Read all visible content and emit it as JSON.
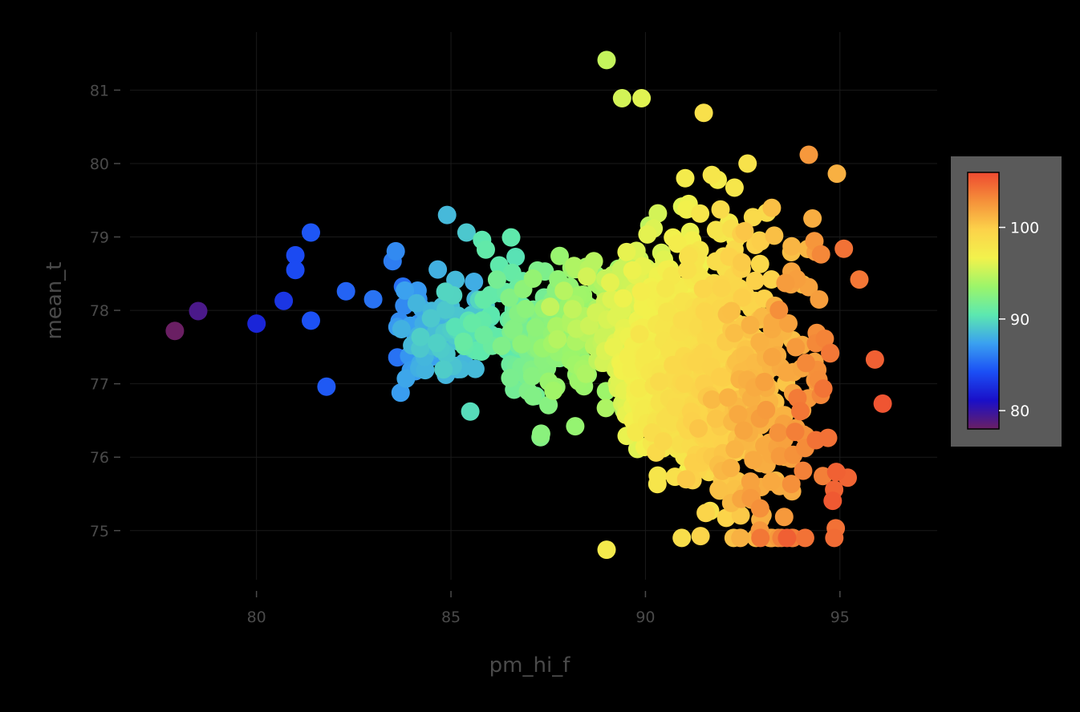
{
  "chart_data": {
    "type": "scatter",
    "title": "",
    "xlabel": "pm_hi_f",
    "ylabel": "mean_t",
    "xlim": [
      76.5,
      97.5
    ],
    "ylim": [
      74.2,
      81.9
    ],
    "x_ticks": [
      80,
      85,
      90,
      95
    ],
    "y_ticks": [
      75,
      76,
      77,
      78,
      79,
      80,
      81
    ],
    "grid": true,
    "background": "#000000",
    "point_count": 1500,
    "colorbar": {
      "label": "",
      "range": [
        78,
        106
      ],
      "ticks": [
        80,
        90,
        100
      ],
      "colorscale": [
        "#6a1f63",
        "#1a0fc8",
        "#1b4ff5",
        "#3aa0f0",
        "#5ce8b0",
        "#9cf56a",
        "#f2f24c",
        "#fcd24a",
        "#f5903a",
        "#ee4a30"
      ],
      "box_color": "#5a5a5a"
    },
    "color_variable_note": "",
    "highlighted_points": [
      {
        "x": 77.9,
        "y": 77.72,
        "c": 78.0
      },
      {
        "x": 78.5,
        "y": 77.99,
        "c": 79.2
      },
      {
        "x": 80.0,
        "y": 77.82,
        "c": 82.2
      },
      {
        "x": 80.7,
        "y": 78.13,
        "c": 83.0
      },
      {
        "x": 81.0,
        "y": 78.75,
        "c": 84.0
      },
      {
        "x": 81.0,
        "y": 78.55,
        "c": 84.0
      },
      {
        "x": 81.4,
        "y": 79.06,
        "c": 84.5
      },
      {
        "x": 81.4,
        "y": 77.86,
        "c": 84.3
      },
      {
        "x": 81.8,
        "y": 76.96,
        "c": 84.6
      },
      {
        "x": 82.3,
        "y": 78.26,
        "c": 85.0
      },
      {
        "x": 83.0,
        "y": 78.15,
        "c": 85.6
      },
      {
        "x": 83.5,
        "y": 78.67,
        "c": 86.0
      },
      {
        "x": 84.9,
        "y": 79.3,
        "c": 88.4
      },
      {
        "x": 85.4,
        "y": 79.06,
        "c": 89.0
      },
      {
        "x": 85.8,
        "y": 78.96,
        "c": 90.5
      },
      {
        "x": 89.0,
        "y": 81.41,
        "c": 95.0
      },
      {
        "x": 89.4,
        "y": 80.89,
        "c": 95.5
      },
      {
        "x": 89.9,
        "y": 80.89,
        "c": 96.0
      },
      {
        "x": 91.5,
        "y": 80.69,
        "c": 98.4
      },
      {
        "x": 94.2,
        "y": 80.12,
        "c": 102.5
      },
      {
        "x": 89.0,
        "y": 74.74,
        "c": 97.4
      },
      {
        "x": 95.2,
        "y": 75.72,
        "c": 104.8
      },
      {
        "x": 96.1,
        "y": 76.73,
        "c": 105.5
      },
      {
        "x": 95.9,
        "y": 77.33,
        "c": 105.0
      },
      {
        "x": 95.5,
        "y": 78.42,
        "c": 104.0
      },
      {
        "x": 95.1,
        "y": 78.84,
        "c": 104.2
      }
    ]
  }
}
